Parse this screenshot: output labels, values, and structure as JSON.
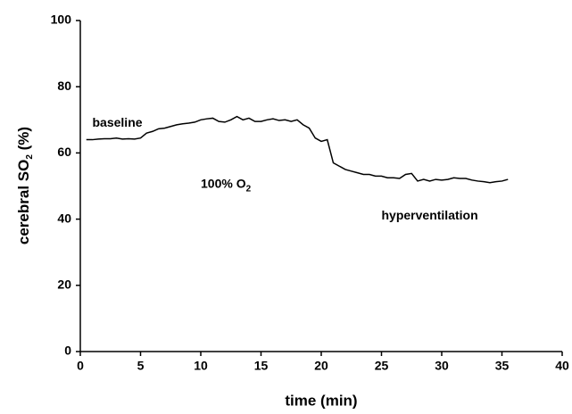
{
  "chart_data": {
    "type": "line",
    "xlabel": "time (min)",
    "ylabel": [
      "cerebral SO",
      "2",
      " (%)"
    ],
    "annotations": [
      {
        "x": 1,
        "y": 69,
        "parts": [
          "baseline"
        ]
      },
      {
        "x": 10,
        "y": 50.5,
        "parts": [
          "100% O",
          "2"
        ]
      },
      {
        "x": 25,
        "y": 41,
        "parts": [
          "hyperventilation"
        ]
      }
    ],
    "x": [
      0.5,
      1,
      1.5,
      2,
      2.5,
      3,
      3.5,
      4,
      4.5,
      5,
      5.5,
      6,
      6.5,
      7,
      7.5,
      8,
      8.5,
      9,
      9.5,
      10,
      10.5,
      11,
      11.5,
      12,
      12.5,
      13,
      13.5,
      14,
      14.5,
      15,
      15.5,
      16,
      16.5,
      17,
      17.5,
      18,
      18.5,
      19,
      19.5,
      20,
      20.5,
      21,
      21.5,
      22,
      22.5,
      23,
      23.5,
      24,
      24.5,
      25,
      25.5,
      26,
      26.5,
      27,
      27.5,
      28,
      28.5,
      29,
      29.5,
      30,
      30.5,
      31,
      31.5,
      32,
      32.5,
      33,
      33.5,
      34,
      34.5,
      35,
      35.5
    ],
    "series": [
      {
        "color": "#000000",
        "values": [
          64,
          64,
          64.2,
          64.3,
          64.3,
          64.5,
          64.2,
          64.3,
          64.2,
          64.5,
          66,
          66.5,
          67.3,
          67.5,
          68,
          68.5,
          68.8,
          69,
          69.3,
          70,
          70.3,
          70.5,
          69.5,
          69.3,
          70,
          71,
          70,
          70.5,
          69.5,
          69.5,
          70,
          70.3,
          69.8,
          70,
          69.5,
          70,
          68.5,
          67.5,
          64.5,
          63.5,
          64,
          57,
          56,
          55,
          54.5,
          54,
          53.5,
          53.5,
          53,
          53,
          52.5,
          52.5,
          52.3,
          53.5,
          53.8,
          51.5,
          52,
          51.5,
          52,
          51.8,
          52,
          52.5,
          52.3,
          52.3,
          51.8,
          51.5,
          51.3,
          51,
          51.3,
          51.5,
          52
        ]
      }
    ],
    "xlim": [
      0,
      40
    ],
    "xticks": [
      0,
      5,
      10,
      15,
      20,
      25,
      30,
      35,
      40
    ],
    "ylim": [
      0,
      100
    ],
    "yticks": [
      0,
      20,
      40,
      60,
      80,
      100
    ]
  }
}
